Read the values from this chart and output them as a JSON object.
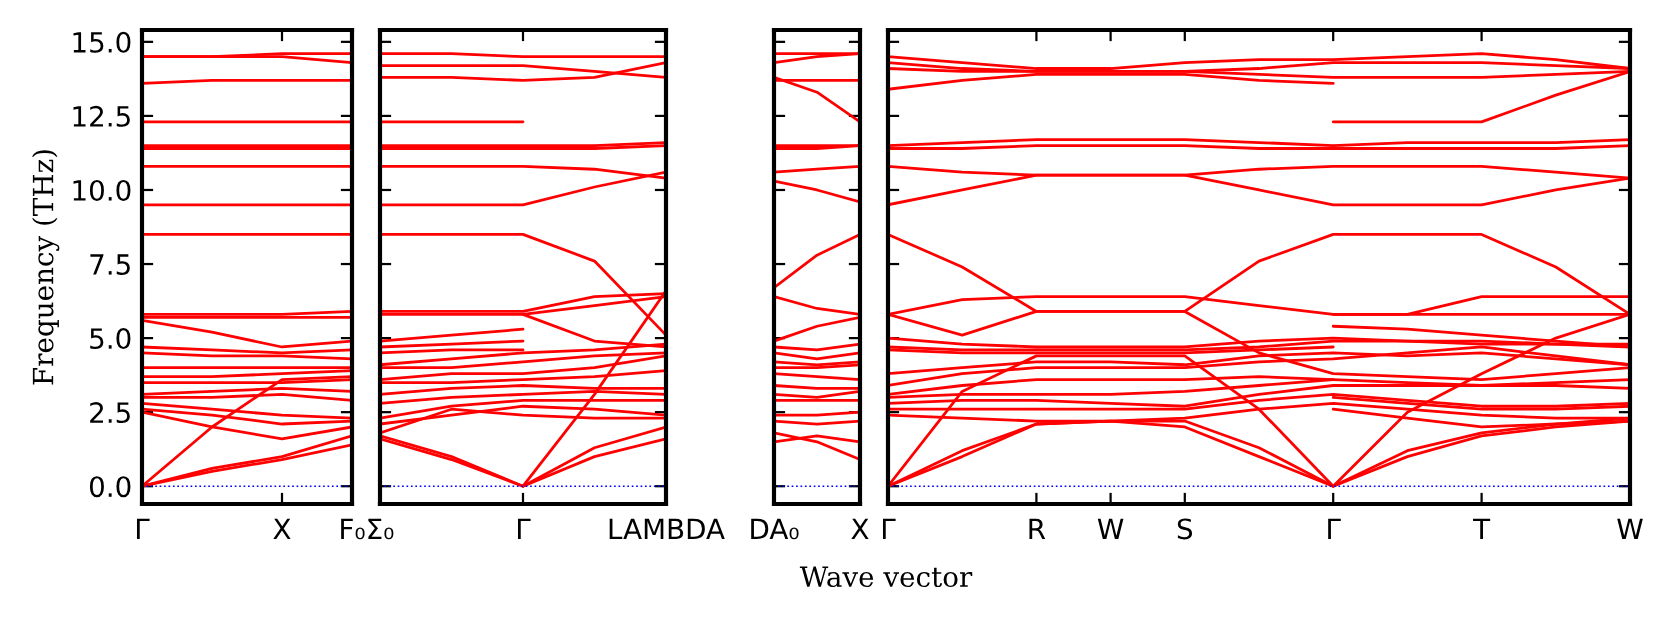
{
  "chart_data": [
    {
      "type": "line",
      "ylabel": "Frequency (THz)",
      "categories": [
        "Γ",
        null,
        "X",
        "F₀"
      ],
      "ylim": [
        -0.6,
        15.4
      ],
      "yticks": [
        {
          "value": 0,
          "label": "0.0"
        },
        {
          "value": 2.5,
          "label": "2.5"
        },
        {
          "value": 5,
          "label": "5.0"
        },
        {
          "value": 7.5,
          "label": "7.5"
        },
        {
          "value": 10,
          "label": "10.0"
        },
        {
          "value": 12.5,
          "label": "12.5"
        },
        {
          "value": 15,
          "label": "15.0"
        }
      ],
      "ref_lines": [
        {
          "axis": "y",
          "value": 0,
          "color": "#0000ff",
          "line_style": "dotted"
        }
      ],
      "series": [
        {
          "color": "#ff0000",
          "values": [
            14.5,
            14.5,
            14.6,
            14.6
          ]
        },
        {
          "color": "#ff0000",
          "values": [
            14.5,
            14.5,
            14.5,
            14.3
          ]
        },
        {
          "color": "#ff0000",
          "values": [
            13.6,
            13.7,
            13.7,
            13.7
          ]
        },
        {
          "color": "#ff0000",
          "values": [
            12.3,
            12.3,
            12.3,
            12.3
          ]
        },
        {
          "color": "#ff0000",
          "values": [
            11.5,
            11.5,
            11.5,
            11.5
          ]
        },
        {
          "color": "#ff0000",
          "values": [
            11.4,
            11.4,
            11.4,
            11.4
          ]
        },
        {
          "color": "#ff0000",
          "values": [
            10.8,
            10.8,
            10.8,
            10.8
          ]
        },
        {
          "color": "#ff0000",
          "values": [
            9.5,
            9.5,
            9.5,
            9.5
          ]
        },
        {
          "color": "#ff0000",
          "values": [
            8.5,
            8.5,
            8.5,
            8.5
          ]
        },
        {
          "color": "#ff0000",
          "values": [
            5.8,
            5.8,
            5.8,
            5.9
          ]
        },
        {
          "color": "#ff0000",
          "values": [
            5.7,
            5.7,
            5.7,
            5.7
          ]
        },
        {
          "color": "#ff0000",
          "values": [
            5.6,
            5.2,
            4.7,
            4.9
          ]
        },
        {
          "color": "#ff0000",
          "values": [
            4.7,
            4.6,
            4.5,
            4.6
          ]
        },
        {
          "color": "#ff0000",
          "values": [
            4.5,
            4.4,
            4.4,
            4.3
          ]
        },
        {
          "color": "#ff0000",
          "values": [
            4.0,
            4.0,
            4.0,
            4.0
          ]
        },
        {
          "color": "#ff0000",
          "values": [
            3.7,
            3.7,
            3.8,
            3.9
          ]
        },
        {
          "color": "#ff0000",
          "values": [
            3.5,
            3.5,
            3.5,
            3.6
          ]
        },
        {
          "color": "#ff0000",
          "values": [
            3.1,
            3.2,
            3.3,
            3.2
          ]
        },
        {
          "color": "#ff0000",
          "values": [
            3.0,
            3.0,
            3.1,
            2.9
          ]
        },
        {
          "color": "#ff0000",
          "values": [
            2.8,
            2.6,
            2.4,
            2.3
          ]
        },
        {
          "color": "#ff0000",
          "values": [
            2.6,
            2.4,
            2.1,
            2.2
          ]
        },
        {
          "color": "#ff0000",
          "values": [
            2.5,
            2.0,
            1.6,
            2.0
          ]
        },
        {
          "color": "#ff0000",
          "values": [
            0,
            0.6,
            1.0,
            1.7
          ]
        },
        {
          "color": "#ff0000",
          "values": [
            0,
            0.5,
            0.9,
            1.4
          ]
        },
        {
          "color": "#ff0000",
          "values": [
            0,
            2.0,
            3.6,
            3.7
          ]
        }
      ]
    },
    {
      "type": "line",
      "tick_labels": "x",
      "categories": [
        "Σ₀",
        null,
        "Γ",
        null,
        "LAMBDA"
      ],
      "ylim": [
        -0.6,
        15.4
      ],
      "yticks": [
        {
          "value": 0,
          "label": null
        },
        {
          "value": 2.5,
          "label": null
        },
        {
          "value": 5,
          "label": null
        },
        {
          "value": 7.5,
          "label": null
        },
        {
          "value": 10,
          "label": null
        },
        {
          "value": 12.5,
          "label": null
        },
        {
          "value": 15,
          "label": null
        }
      ],
      "ref_lines": [
        {
          "axis": "y",
          "value": 0,
          "color": "#0000ff",
          "line_style": "dotted"
        }
      ],
      "series": [
        {
          "color": "#ff0000",
          "values": [
            14.6,
            14.6,
            14.5,
            14.5,
            14.5
          ]
        },
        {
          "color": "#ff0000",
          "values": [
            11.5,
            11.5,
            11.5,
            11.5,
            11.6
          ]
        },
        {
          "color": "#ff0000",
          "values": [
            11.4,
            11.4,
            11.4,
            11.4,
            11.5
          ]
        },
        {
          "color": "#ff0000",
          "values": [
            10.8,
            10.8,
            10.8,
            10.7,
            10.4
          ]
        },
        {
          "color": "#ff0000",
          "values": [
            9.5,
            9.5,
            9.5,
            10.1,
            10.6
          ]
        },
        {
          "color": "#ff0000",
          "values": [
            8.5,
            8.5,
            8.5,
            7.6,
            5.1
          ]
        },
        {
          "color": "#ff0000",
          "values": [
            5.9,
            5.9,
            5.9,
            6.4,
            6.5
          ]
        },
        {
          "color": "#ff0000",
          "values": [
            5.8,
            5.8,
            5.8,
            6.1,
            6.4
          ]
        },
        {
          "color": "#ff0000",
          "values": [
            4.1,
            4.3,
            4.5,
            4.6,
            4.8
          ]
        },
        {
          "color": "#ff0000",
          "values": [
            4.0,
            4.0,
            4.2,
            4.4,
            4.5
          ]
        },
        {
          "color": "#ff0000",
          "values": [
            3.6,
            3.8,
            3.8,
            4.0,
            4.4
          ]
        },
        {
          "color": "#ff0000",
          "values": [
            3.5,
            3.5,
            3.6,
            3.7,
            3.9
          ]
        },
        {
          "color": "#ff0000",
          "values": [
            3.1,
            3.3,
            3.4,
            3.3,
            3.3
          ]
        },
        {
          "color": "#ff0000",
          "values": [
            2.8,
            3.0,
            3.1,
            3.2,
            3.1
          ]
        },
        {
          "color": "#ff0000",
          "values": [
            2.3,
            2.7,
            2.9,
            2.9,
            2.9
          ]
        },
        {
          "color": "#ff0000",
          "values": [
            2.1,
            2.4,
            2.7,
            2.6,
            2.4
          ]
        },
        {
          "color": "#ff0000",
          "values": [
            1.8,
            2.6,
            2.4,
            2.3,
            2.3
          ]
        },
        {
          "color": "#ff0000",
          "values": [
            1.6,
            0.9,
            0,
            1.3,
            2.0
          ]
        },
        {
          "color": "#ff0000",
          "values": [
            1.7,
            1.0,
            0,
            1.0,
            1.6
          ]
        },
        {
          "color": "#ff0000",
          "values": [
            14.2,
            14.2,
            14.2,
            14.0,
            13.8
          ]
        },
        {
          "color": "#ff0000",
          "values": [
            13.8,
            13.8,
            13.7,
            13.8,
            14.3
          ]
        },
        {
          "color": "#ff0000",
          "values": [
            12.3,
            12.3,
            12.3,
            null,
            null
          ]
        },
        {
          "color": "#ff0000",
          "values": [
            4.9,
            5.1,
            5.3,
            null,
            null
          ]
        },
        {
          "color": "#ff0000",
          "values": [
            4.7,
            4.8,
            4.9,
            null,
            null
          ]
        },
        {
          "color": "#ff0000",
          "values": [
            4.5,
            4.6,
            4.6,
            null,
            null
          ]
        },
        {
          "color": "#ff0000",
          "values": [
            null,
            null,
            5.8,
            4.9,
            4.7
          ]
        },
        {
          "color": "#ff0000",
          "values": [
            null,
            null,
            0,
            3.1,
            6.6
          ]
        }
      ]
    },
    {
      "type": "line",
      "tick_labels": "x",
      "categories": [
        "DA₀",
        null,
        "X"
      ],
      "ylim": [
        -0.6,
        15.4
      ],
      "yticks": [
        {
          "value": 0,
          "label": null
        },
        {
          "value": 2.5,
          "label": null
        },
        {
          "value": 5,
          "label": null
        },
        {
          "value": 7.5,
          "label": null
        },
        {
          "value": 10,
          "label": null
        },
        {
          "value": 12.5,
          "label": null
        },
        {
          "value": 15,
          "label": null
        }
      ],
      "ref_lines": [
        {
          "axis": "y",
          "value": 0,
          "color": "#0000ff",
          "line_style": "dotted"
        }
      ],
      "series": [
        {
          "color": "#ff0000",
          "values": [
            14.6,
            14.6,
            14.6
          ]
        },
        {
          "color": "#ff0000",
          "values": [
            14.3,
            14.5,
            14.6
          ]
        },
        {
          "color": "#ff0000",
          "values": [
            13.8,
            13.3,
            12.3
          ]
        },
        {
          "color": "#ff0000",
          "values": [
            13.7,
            13.7,
            13.7
          ]
        },
        {
          "color": "#ff0000",
          "values": [
            11.5,
            11.5,
            11.5
          ]
        },
        {
          "color": "#ff0000",
          "values": [
            11.4,
            11.4,
            11.5
          ]
        },
        {
          "color": "#ff0000",
          "values": [
            10.6,
            10.7,
            10.8
          ]
        },
        {
          "color": "#ff0000",
          "values": [
            10.3,
            10.0,
            9.6
          ]
        },
        {
          "color": "#ff0000",
          "values": [
            6.7,
            7.8,
            8.5
          ]
        },
        {
          "color": "#ff0000",
          "values": [
            6.4,
            6.0,
            5.8
          ]
        },
        {
          "color": "#ff0000",
          "values": [
            4.9,
            5.4,
            5.7
          ]
        },
        {
          "color": "#ff0000",
          "values": [
            4.7,
            4.6,
            4.8
          ]
        },
        {
          "color": "#ff0000",
          "values": [
            4.5,
            4.3,
            4.5
          ]
        },
        {
          "color": "#ff0000",
          "values": [
            4.2,
            4.1,
            4.2
          ]
        },
        {
          "color": "#ff0000",
          "values": [
            4.0,
            4.0,
            4.1
          ]
        },
        {
          "color": "#ff0000",
          "values": [
            3.8,
            3.7,
            3.6
          ]
        },
        {
          "color": "#ff0000",
          "values": [
            3.4,
            3.3,
            3.3
          ]
        },
        {
          "color": "#ff0000",
          "values": [
            3.1,
            3.0,
            3.2
          ]
        },
        {
          "color": "#ff0000",
          "values": [
            2.9,
            2.9,
            2.9
          ]
        },
        {
          "color": "#ff0000",
          "values": [
            2.4,
            2.4,
            2.5
          ]
        },
        {
          "color": "#ff0000",
          "values": [
            2.2,
            2.1,
            2.2
          ]
        },
        {
          "color": "#ff0000",
          "values": [
            1.8,
            1.5,
            0.9
          ]
        },
        {
          "color": "#ff0000",
          "values": [
            1.5,
            1.7,
            1.5
          ]
        }
      ]
    },
    {
      "type": "line",
      "tick_labels": "x",
      "xlabel": "Wave vector",
      "categories": [
        "Γ",
        null,
        "R",
        "W",
        "S",
        null,
        "Γ",
        null,
        "T",
        null,
        "W"
      ],
      "ylim": [
        -0.6,
        15.4
      ],
      "yticks": [
        {
          "value": 0,
          "label": null
        },
        {
          "value": 2.5,
          "label": null
        },
        {
          "value": 5,
          "label": null
        },
        {
          "value": 7.5,
          "label": null
        },
        {
          "value": 10,
          "label": null
        },
        {
          "value": 12.5,
          "label": null
        },
        {
          "value": 15,
          "label": null
        }
      ],
      "ref_lines": [
        {
          "axis": "y",
          "value": 0,
          "color": "#0000ff",
          "line_style": "dotted"
        }
      ],
      "series": [
        {
          "color": "#ff0000",
          "values": [
            14.5,
            14.3,
            14.1,
            14.1,
            14.3,
            14.4,
            14.4,
            14.5,
            14.6,
            14.4,
            14.1
          ]
        },
        {
          "color": "#ff0000",
          "values": [
            14.3,
            14.1,
            14.0,
            14.0,
            14.0,
            14.1,
            14.3,
            14.3,
            14.3,
            14.2,
            14.1
          ]
        },
        {
          "color": "#ff0000",
          "values": [
            14.1,
            14.0,
            14.0,
            14.0,
            14.0,
            13.9,
            13.8,
            13.8,
            13.8,
            13.9,
            14.0
          ]
        },
        {
          "color": "#ff0000",
          "values": [
            13.4,
            13.7,
            13.9,
            13.9,
            13.9,
            13.7,
            13.6,
            null,
            null,
            null,
            null
          ]
        },
        {
          "color": "#ff0000",
          "values": [
            11.5,
            11.6,
            11.7,
            11.7,
            11.7,
            11.6,
            11.5,
            11.6,
            11.6,
            11.6,
            11.7
          ]
        },
        {
          "color": "#ff0000",
          "values": [
            11.4,
            11.4,
            11.5,
            11.5,
            11.5,
            11.4,
            11.4,
            11.4,
            11.4,
            11.4,
            11.5
          ]
        },
        {
          "color": "#ff0000",
          "values": [
            10.8,
            10.6,
            10.5,
            10.5,
            10.5,
            10.7,
            10.8,
            10.8,
            10.8,
            10.6,
            10.4
          ]
        },
        {
          "color": "#ff0000",
          "values": [
            9.5,
            10.0,
            10.5,
            10.5,
            10.5,
            10.0,
            9.5,
            9.5,
            9.5,
            10.0,
            10.4
          ]
        },
        {
          "color": "#ff0000",
          "values": [
            8.5,
            7.4,
            5.9,
            5.9,
            5.9,
            7.6,
            8.5,
            8.5,
            8.5,
            7.4,
            5.8
          ]
        },
        {
          "color": "#ff0000",
          "values": [
            5.8,
            6.3,
            6.4,
            6.4,
            6.4,
            6.1,
            5.8,
            5.8,
            6.4,
            6.4,
            6.4
          ]
        },
        {
          "color": "#ff0000",
          "values": [
            5.8,
            5.1,
            5.9,
            5.9,
            5.9,
            4.5,
            3.8,
            3.7,
            3.6,
            3.8,
            4.0
          ]
        },
        {
          "color": "#ff0000",
          "values": [
            5.0,
            4.8,
            4.7,
            4.7,
            4.7,
            4.9,
            5.0,
            4.9,
            4.8,
            4.8,
            4.8
          ]
        },
        {
          "color": "#ff0000",
          "values": [
            4.7,
            4.6,
            4.6,
            4.6,
            4.6,
            4.7,
            4.9,
            4.9,
            4.9,
            4.8,
            4.7
          ]
        },
        {
          "color": "#ff0000",
          "values": [
            4.6,
            4.5,
            4.5,
            4.5,
            4.5,
            4.6,
            4.7,
            null,
            null,
            null,
            null
          ]
        },
        {
          "color": "#ff0000",
          "values": [
            3.8,
            4.0,
            4.2,
            4.2,
            4.1,
            4.4,
            4.5,
            4.4,
            4.5,
            4.3,
            4.1
          ]
        },
        {
          "color": "#ff0000",
          "values": [
            3.4,
            3.8,
            4.0,
            4.0,
            4.0,
            4.2,
            4.3,
            4.5,
            4.7,
            4.4,
            4.1
          ]
        },
        {
          "color": "#ff0000",
          "values": [
            3.1,
            3.4,
            3.6,
            3.6,
            3.6,
            3.7,
            3.6,
            3.5,
            3.4,
            3.5,
            3.6
          ]
        },
        {
          "color": "#ff0000",
          "values": [
            3.0,
            3.1,
            3.1,
            3.1,
            3.2,
            3.4,
            3.6,
            null,
            null,
            null,
            null
          ]
        },
        {
          "color": "#ff0000",
          "values": [
            2.8,
            2.9,
            2.9,
            2.8,
            2.7,
            3.1,
            3.4,
            3.4,
            3.4,
            3.4,
            3.3
          ]
        },
        {
          "color": "#ff0000",
          "values": [
            2.6,
            2.6,
            2.6,
            2.6,
            2.6,
            2.9,
            3.1,
            2.9,
            2.7,
            2.7,
            2.8
          ]
        },
        {
          "color": "#ff0000",
          "values": [
            2.4,
            2.3,
            2.2,
            2.2,
            2.3,
            2.6,
            2.8,
            2.6,
            2.4,
            2.3,
            2.3
          ]
        },
        {
          "color": "#ff0000",
          "values": [
            0,
            1.2,
            2.1,
            2.2,
            2.0,
            1.0,
            0,
            1.2,
            1.8,
            2.1,
            2.3
          ]
        },
        {
          "color": "#ff0000",
          "values": [
            0,
            1.0,
            2.1,
            2.2,
            2.2,
            1.3,
            0,
            1.0,
            1.7,
            2.0,
            2.2
          ]
        },
        {
          "color": "#ff0000",
          "values": [
            0,
            3.2,
            4.4,
            4.4,
            4.4,
            2.6,
            0,
            2.5,
            3.8,
            5.0,
            5.8
          ]
        },
        {
          "color": "#ff0000",
          "values": [
            null,
            null,
            null,
            null,
            null,
            null,
            12.3,
            12.3,
            12.3,
            13.2,
            14.0
          ]
        },
        {
          "color": "#ff0000",
          "values": [
            null,
            null,
            null,
            null,
            null,
            null,
            5.8,
            5.8,
            5.8,
            5.8,
            5.8
          ]
        },
        {
          "color": "#ff0000",
          "values": [
            null,
            null,
            null,
            null,
            null,
            null,
            5.4,
            5.3,
            5.1,
            4.9,
            4.7
          ]
        },
        {
          "color": "#ff0000",
          "values": [
            null,
            null,
            null,
            null,
            null,
            null,
            3.0,
            2.8,
            2.6,
            2.6,
            2.7
          ]
        },
        {
          "color": "#ff0000",
          "values": [
            null,
            null,
            null,
            null,
            null,
            null,
            2.6,
            2.3,
            2.0,
            2.1,
            2.2
          ]
        }
      ]
    }
  ]
}
